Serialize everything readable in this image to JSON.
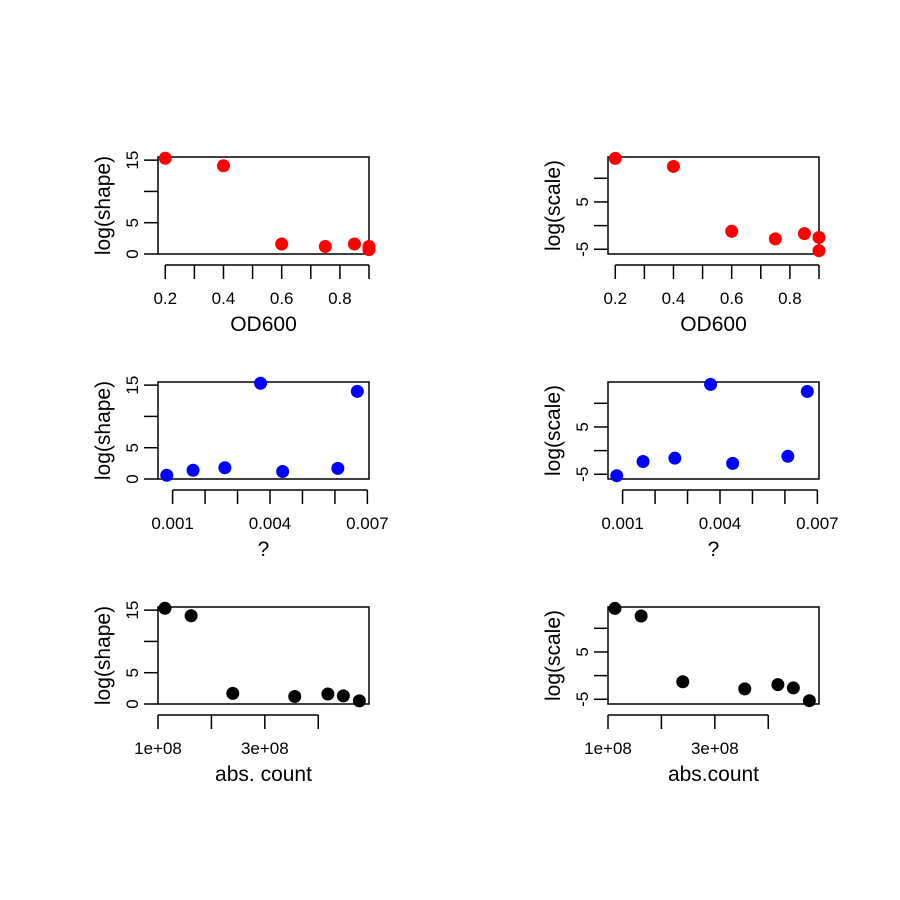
{
  "chart_data": [
    {
      "type": "scatter",
      "xlabel": "OD600",
      "ylabel": "log(shape)",
      "point_color": "#ff0000",
      "x_ticks": [
        0.2,
        0.3,
        0.4,
        0.5,
        0.6,
        0.7,
        0.8,
        0.9
      ],
      "x_tick_labels": [
        "0.2",
        "",
        "0.4",
        "",
        "0.6",
        "",
        "0.8",
        ""
      ],
      "y_ticks": [
        0,
        5,
        10,
        15
      ],
      "y_tick_labels": [
        "0",
        "5",
        "",
        "15"
      ],
      "xlim": [
        0.175,
        0.9
      ],
      "ylim": [
        0,
        15.5
      ],
      "x": [
        0.2,
        0.4,
        0.6,
        0.75,
        0.85,
        0.9,
        0.9
      ],
      "y": [
        15.3,
        14.1,
        1.6,
        1.2,
        1.6,
        1.2,
        0.7
      ]
    },
    {
      "type": "scatter",
      "xlabel": "OD600",
      "ylabel": "log(scale)",
      "point_color": "#ff0000",
      "x_ticks": [
        0.2,
        0.3,
        0.4,
        0.5,
        0.6,
        0.7,
        0.8,
        0.9
      ],
      "x_tick_labels": [
        "0.2",
        "",
        "0.4",
        "",
        "0.6",
        "",
        "0.8",
        ""
      ],
      "y_ticks": [
        -5,
        0,
        5,
        10
      ],
      "y_tick_labels": [
        "-5",
        "",
        "5",
        ""
      ],
      "xlim": [
        0.175,
        0.9
      ],
      "ylim": [
        -6,
        14.5
      ],
      "x": [
        0.2,
        0.4,
        0.6,
        0.75,
        0.85,
        0.9,
        0.9
      ],
      "y": [
        14.2,
        12.5,
        -1.2,
        -2.8,
        -1.7,
        -2.5,
        -5.3
      ]
    },
    {
      "type": "scatter",
      "xlabel": "?",
      "ylabel": "log(shape)",
      "point_color": "#0000ff",
      "x_ticks": [
        0.001,
        0.002,
        0.003,
        0.004,
        0.005,
        0.006,
        0.007
      ],
      "x_tick_labels": [
        "0.001",
        "",
        "",
        "0.004",
        "",
        "",
        "0.007"
      ],
      "y_ticks": [
        0,
        5,
        10,
        15
      ],
      "y_tick_labels": [
        "0",
        "5",
        "",
        "15"
      ],
      "xlim": [
        0.00055,
        0.00705
      ],
      "ylim": [
        0,
        15.5
      ],
      "x": [
        0.00082,
        0.00163,
        0.00261,
        0.00371,
        0.00439,
        0.00609,
        0.00669
      ],
      "y": [
        0.6,
        1.4,
        1.8,
        15.3,
        1.2,
        1.7,
        14.0
      ]
    },
    {
      "type": "scatter",
      "xlabel": "?",
      "ylabel": "log(scale)",
      "point_color": "#0000ff",
      "x_ticks": [
        0.001,
        0.002,
        0.003,
        0.004,
        0.005,
        0.006,
        0.007
      ],
      "x_tick_labels": [
        "0.001",
        "",
        "",
        "0.004",
        "",
        "",
        "0.007"
      ],
      "y_ticks": [
        -5,
        0,
        5,
        10
      ],
      "y_tick_labels": [
        "-5",
        "",
        "5",
        ""
      ],
      "xlim": [
        0.00055,
        0.00705
      ],
      "ylim": [
        -6,
        14.5
      ],
      "x": [
        0.00082,
        0.00163,
        0.00261,
        0.00371,
        0.00439,
        0.00609,
        0.00669
      ],
      "y": [
        -5.3,
        -2.3,
        -1.6,
        14.0,
        -2.7,
        -1.2,
        12.5
      ]
    },
    {
      "type": "scatter",
      "xlabel": "abs. count",
      "ylabel": "log(shape)",
      "point_color": "#000000",
      "x_ticks": [
        100000000,
        200000000,
        300000000,
        400000000
      ],
      "x_tick_labels": [
        "1e+08",
        "",
        "3e+08",
        ""
      ],
      "y_ticks": [
        0,
        5,
        10,
        15
      ],
      "y_tick_labels": [
        "0",
        "5",
        "",
        "15"
      ],
      "xlim": [
        100000000,
        495000000
      ],
      "ylim": [
        0,
        15.5
      ],
      "x": [
        113000000,
        162000000,
        240000000,
        356000000,
        418000000,
        447000000,
        477000000
      ],
      "y": [
        15.3,
        14.1,
        1.7,
        1.2,
        1.6,
        1.3,
        0.5
      ]
    },
    {
      "type": "scatter",
      "xlabel": "abs.count",
      "ylabel": "log(scale)",
      "point_color": "#000000",
      "x_ticks": [
        100000000,
        200000000,
        300000000,
        400000000
      ],
      "x_tick_labels": [
        "1e+08",
        "",
        "3e+08",
        ""
      ],
      "y_ticks": [
        -5,
        0,
        5,
        10
      ],
      "y_tick_labels": [
        "-5",
        "",
        "5",
        ""
      ],
      "xlim": [
        100000000,
        495000000
      ],
      "ylim": [
        -6,
        14.5
      ],
      "x": [
        113000000,
        162000000,
        240000000,
        356000000,
        418000000,
        447000000,
        477000000
      ],
      "y": [
        14.2,
        12.6,
        -1.3,
        -2.8,
        -1.9,
        -2.6,
        -5.3
      ]
    }
  ]
}
